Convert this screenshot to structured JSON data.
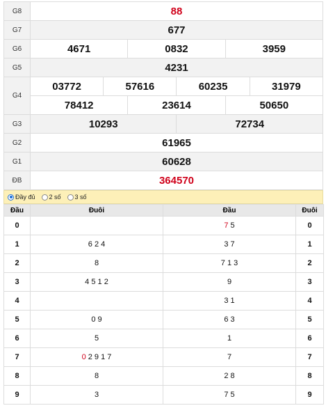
{
  "results": {
    "g8": {
      "label": "G8",
      "value": "88"
    },
    "g7": {
      "label": "G7",
      "value": "677"
    },
    "g6": {
      "label": "G6",
      "values": [
        "4671",
        "0832",
        "3959"
      ]
    },
    "g5": {
      "label": "G5",
      "value": "4231"
    },
    "g4": {
      "label": "G4",
      "row1": [
        "03772",
        "57616",
        "60235",
        "31979"
      ],
      "row2": [
        "78412",
        "23614",
        "50650"
      ]
    },
    "g3": {
      "label": "G3",
      "values": [
        "10293",
        "72734"
      ]
    },
    "g2": {
      "label": "G2",
      "value": "61965"
    },
    "g1": {
      "label": "G1",
      "value": "60628"
    },
    "db": {
      "label": "ĐB",
      "value": "364570"
    }
  },
  "options": {
    "full": "Đầy đủ",
    "two": "2 số",
    "three": "3 số",
    "selected": "full"
  },
  "table": {
    "h_dau": "Đầu",
    "h_duoi": "Đuôi",
    "h_dau2": "Đầu",
    "h_duoi2": "Đuôi",
    "left": [
      {
        "head": "0",
        "tail": ""
      },
      {
        "head": "1",
        "tail": "6 2 4"
      },
      {
        "head": "2",
        "tail": "8"
      },
      {
        "head": "3",
        "tail": "4 5 1 2"
      },
      {
        "head": "4",
        "tail": ""
      },
      {
        "head": "5",
        "tail": "0 9"
      },
      {
        "head": "6",
        "tail": "5"
      },
      {
        "head": "7",
        "tail_red": "0",
        "tail": " 2 9 1 7"
      },
      {
        "head": "8",
        "tail": "8"
      },
      {
        "head": "9",
        "tail": "3"
      }
    ],
    "right": [
      {
        "heads_red": "7",
        "heads": " 5",
        "tail": "0"
      },
      {
        "heads": "3 7",
        "tail": "1"
      },
      {
        "heads": "7 1 3",
        "tail": "2"
      },
      {
        "heads": "9",
        "tail": "3"
      },
      {
        "heads": "3 1",
        "tail": "4"
      },
      {
        "heads": "6 3",
        "tail": "5"
      },
      {
        "heads": "1",
        "tail": "6"
      },
      {
        "heads": "7",
        "tail": "7"
      },
      {
        "heads": "2 8",
        "tail": "8"
      },
      {
        "heads": "7 5",
        "tail": "9"
      }
    ]
  },
  "colors": {
    "accent_red": "#d0021b",
    "option_bar": "#fdf0b8"
  }
}
